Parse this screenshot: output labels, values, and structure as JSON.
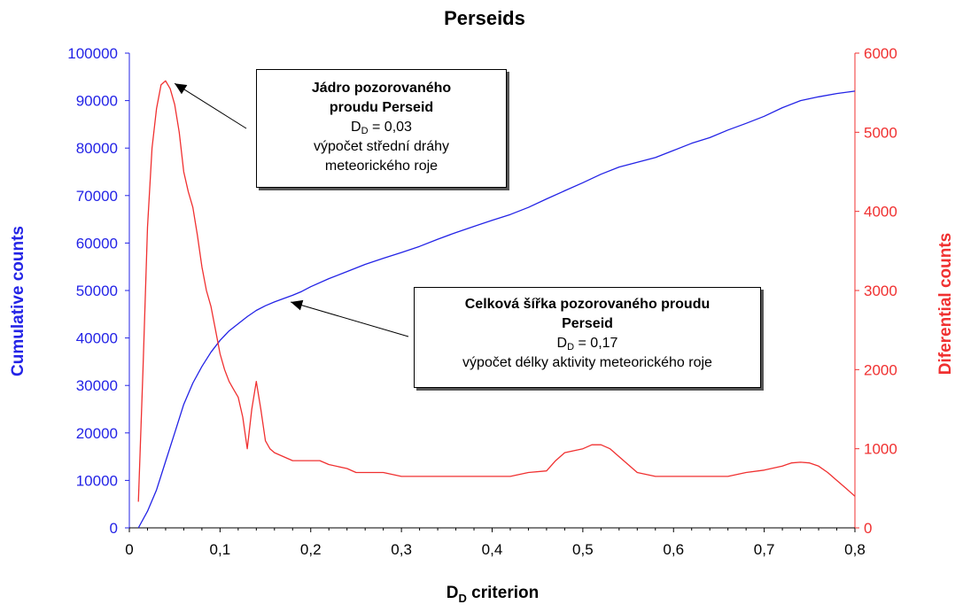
{
  "chart_data": {
    "type": "line",
    "title": "Perseids",
    "xlabel": {
      "main": "D",
      "sub": "D",
      "rest": " criterion"
    },
    "ylabel_left": "Cumulative counts",
    "ylabel_right": "Diferential counts",
    "xlim": [
      0,
      0.8
    ],
    "ylim_left": [
      0,
      100000
    ],
    "ylim_right": [
      0,
      6000
    ],
    "x_ticks": [
      "0",
      "0,1",
      "0,2",
      "0,3",
      "0,4",
      "0,5",
      "0,6",
      "0,7",
      "0,8"
    ],
    "y_ticks_left": [
      "0",
      "10000",
      "20000",
      "30000",
      "40000",
      "50000",
      "60000",
      "70000",
      "80000",
      "90000",
      "100000"
    ],
    "y_ticks_right": [
      "0",
      "1000",
      "2000",
      "3000",
      "4000",
      "5000",
      "6000"
    ],
    "colors": {
      "cumulative": "#2323e6",
      "differential": "#f03030",
      "axis_left": "#2323e6",
      "axis_right": "#f03030"
    },
    "series": [
      {
        "name": "Cumulative counts",
        "axis": "left",
        "x": [
          0.01,
          0.02,
          0.03,
          0.04,
          0.05,
          0.06,
          0.07,
          0.08,
          0.09,
          0.1,
          0.11,
          0.12,
          0.13,
          0.14,
          0.15,
          0.16,
          0.17,
          0.18,
          0.19,
          0.2,
          0.22,
          0.24,
          0.26,
          0.28,
          0.3,
          0.32,
          0.34,
          0.36,
          0.38,
          0.4,
          0.42,
          0.44,
          0.46,
          0.48,
          0.5,
          0.52,
          0.54,
          0.56,
          0.58,
          0.6,
          0.62,
          0.64,
          0.66,
          0.68,
          0.7,
          0.72,
          0.74,
          0.76,
          0.78,
          0.8
        ],
        "values": [
          0,
          3500,
          8000,
          14000,
          20000,
          26000,
          30500,
          34000,
          37000,
          39500,
          41500,
          43000,
          44500,
          45800,
          46800,
          47600,
          48300,
          49000,
          49800,
          50800,
          52500,
          54000,
          55500,
          56800,
          58000,
          59300,
          60800,
          62200,
          63500,
          64800,
          66000,
          67500,
          69300,
          71000,
          72700,
          74500,
          76000,
          77000,
          78000,
          79500,
          81000,
          82200,
          83800,
          85200,
          86700,
          88500,
          90000,
          90800,
          91500,
          92000
        ]
      },
      {
        "name": "Differential counts",
        "axis": "right",
        "x": [
          0.01,
          0.015,
          0.02,
          0.025,
          0.03,
          0.035,
          0.04,
          0.045,
          0.05,
          0.055,
          0.06,
          0.065,
          0.07,
          0.075,
          0.08,
          0.085,
          0.09,
          0.095,
          0.1,
          0.105,
          0.11,
          0.115,
          0.12,
          0.125,
          0.13,
          0.135,
          0.14,
          0.145,
          0.15,
          0.155,
          0.16,
          0.17,
          0.18,
          0.19,
          0.2,
          0.21,
          0.22,
          0.24,
          0.25,
          0.26,
          0.28,
          0.3,
          0.32,
          0.34,
          0.36,
          0.38,
          0.4,
          0.42,
          0.44,
          0.46,
          0.47,
          0.48,
          0.5,
          0.51,
          0.52,
          0.53,
          0.54,
          0.56,
          0.58,
          0.6,
          0.62,
          0.64,
          0.66,
          0.68,
          0.7,
          0.72,
          0.73,
          0.74,
          0.75,
          0.76,
          0.77,
          0.78,
          0.79,
          0.8
        ],
        "values": [
          330,
          2000,
          3800,
          4800,
          5300,
          5600,
          5650,
          5550,
          5350,
          5000,
          4500,
          4250,
          4050,
          3700,
          3300,
          3000,
          2800,
          2500,
          2200,
          2000,
          1850,
          1750,
          1650,
          1400,
          1000,
          1500,
          1850,
          1500,
          1100,
          1000,
          950,
          900,
          850,
          850,
          850,
          850,
          800,
          750,
          700,
          700,
          700,
          650,
          650,
          650,
          650,
          650,
          650,
          650,
          700,
          720,
          850,
          950,
          1000,
          1050,
          1050,
          1000,
          900,
          700,
          650,
          650,
          650,
          650,
          650,
          700,
          730,
          780,
          820,
          830,
          820,
          780,
          700,
          600,
          500,
          400
        ]
      }
    ],
    "annotations": [
      {
        "title_line1": "Jádro pozorovaného",
        "title_line2": "proudu Perseid",
        "d_prefix": "D",
        "d_sub": "D",
        "d_value": " = 0,03",
        "line3": "výpočet střední dráhy",
        "line4": "meteorického roje",
        "arrow_x": 0.048,
        "arrow_y_right": 5550
      },
      {
        "title_line1": "Celková šířka pozorovaného proudu",
        "title_line2": "Perseid",
        "d_prefix": "D",
        "d_sub": "D",
        "d_value": " = 0,17",
        "line3": "výpočet délky aktivity meteorického roje",
        "arrow_x": 0.175,
        "arrow_y_left": 47200
      }
    ]
  }
}
